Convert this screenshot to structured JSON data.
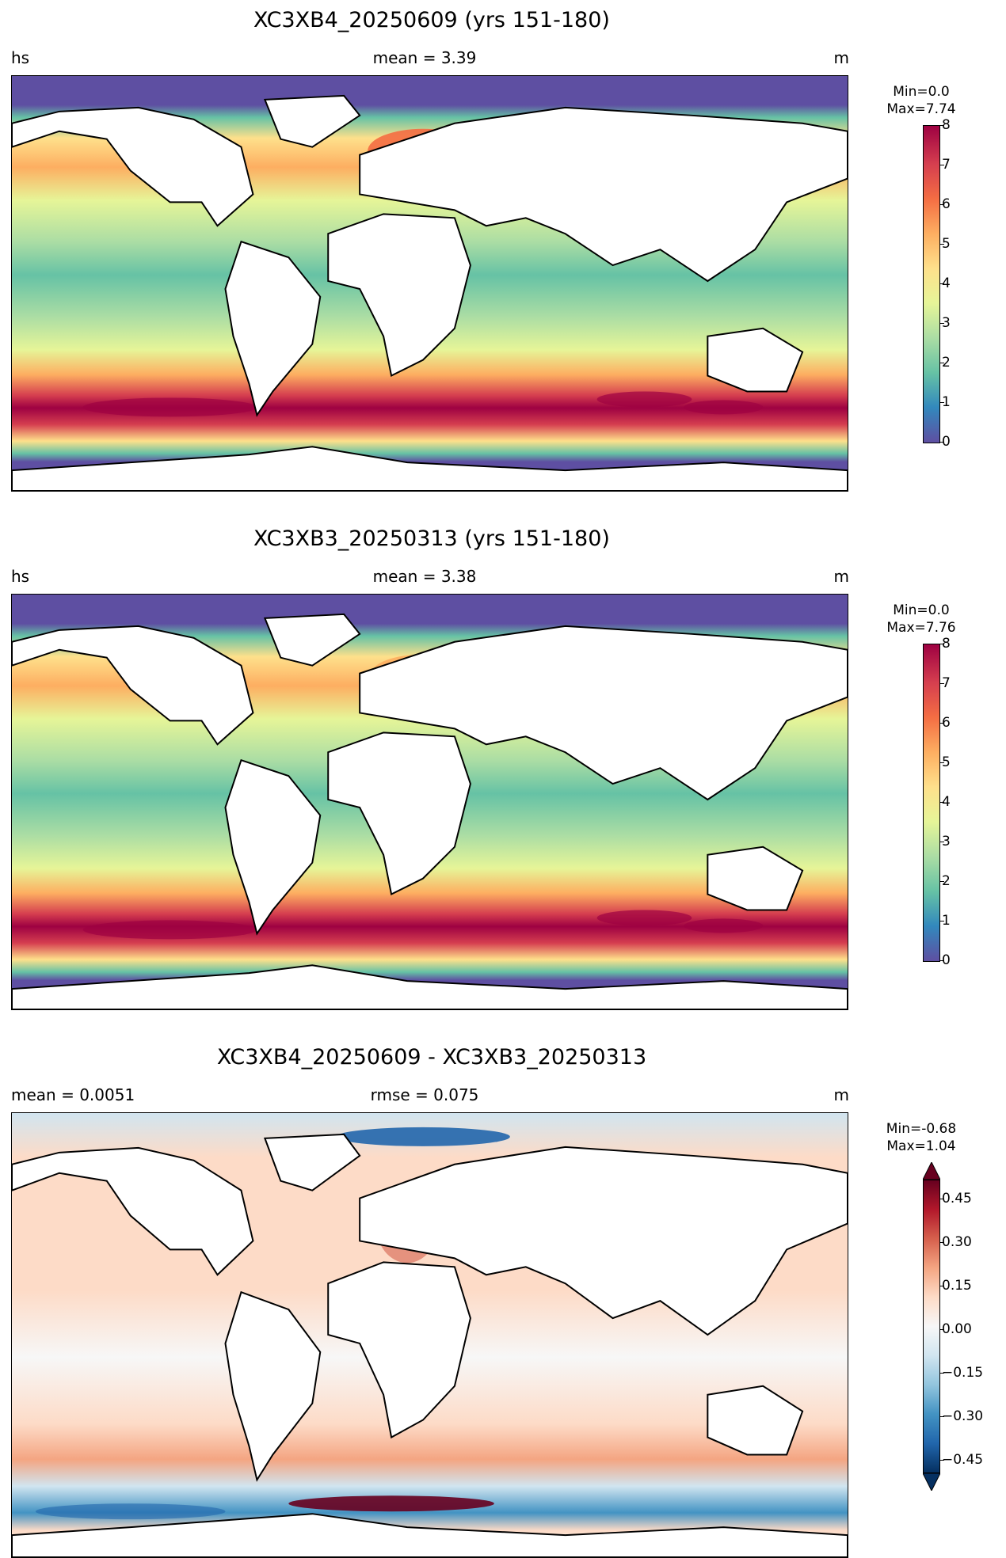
{
  "panels": [
    {
      "title": "XC3XB4_20250609 (yrs 151-180)",
      "left_label": "hs",
      "center_label": "mean = 3.39",
      "right_label": "m",
      "cbar_min": "Min=0.0",
      "cbar_max": "Max=7.74",
      "ticks": [
        "8",
        "7",
        "6",
        "5",
        "4",
        "3",
        "2",
        "1",
        "0"
      ]
    },
    {
      "title": "XC3XB3_20250313 (yrs 151-180)",
      "left_label": "hs",
      "center_label": "mean = 3.38",
      "right_label": "m",
      "cbar_min": "Min=0.0",
      "cbar_max": "Max=7.76",
      "ticks": [
        "8",
        "7",
        "6",
        "5",
        "4",
        "3",
        "2",
        "1",
        "0"
      ]
    },
    {
      "title": "XC3XB4_20250609 - XC3XB3_20250313",
      "left_label": "mean = 0.0051",
      "center_label": "rmse = 0.075",
      "right_label": "m",
      "cbar_min": "Min=-0.68",
      "cbar_max": "Max=1.04",
      "ticks": [
        "0.45",
        "0.30",
        "0.15",
        "0.00",
        "−0.15",
        "−0.30",
        "−0.45"
      ]
    }
  ],
  "colors": {
    "spectral": [
      "#5e4fa2",
      "#3288bd",
      "#66c2a5",
      "#abdda4",
      "#e6f598",
      "#fee08b",
      "#fdae61",
      "#f46d43",
      "#d53e4f",
      "#9e0142"
    ],
    "diverging": [
      "#053061",
      "#2166ac",
      "#4393c3",
      "#92c5de",
      "#d1e5f0",
      "#f7f7f7",
      "#fddbc7",
      "#f4a582",
      "#d6604d",
      "#b2182b",
      "#67001f"
    ]
  }
}
